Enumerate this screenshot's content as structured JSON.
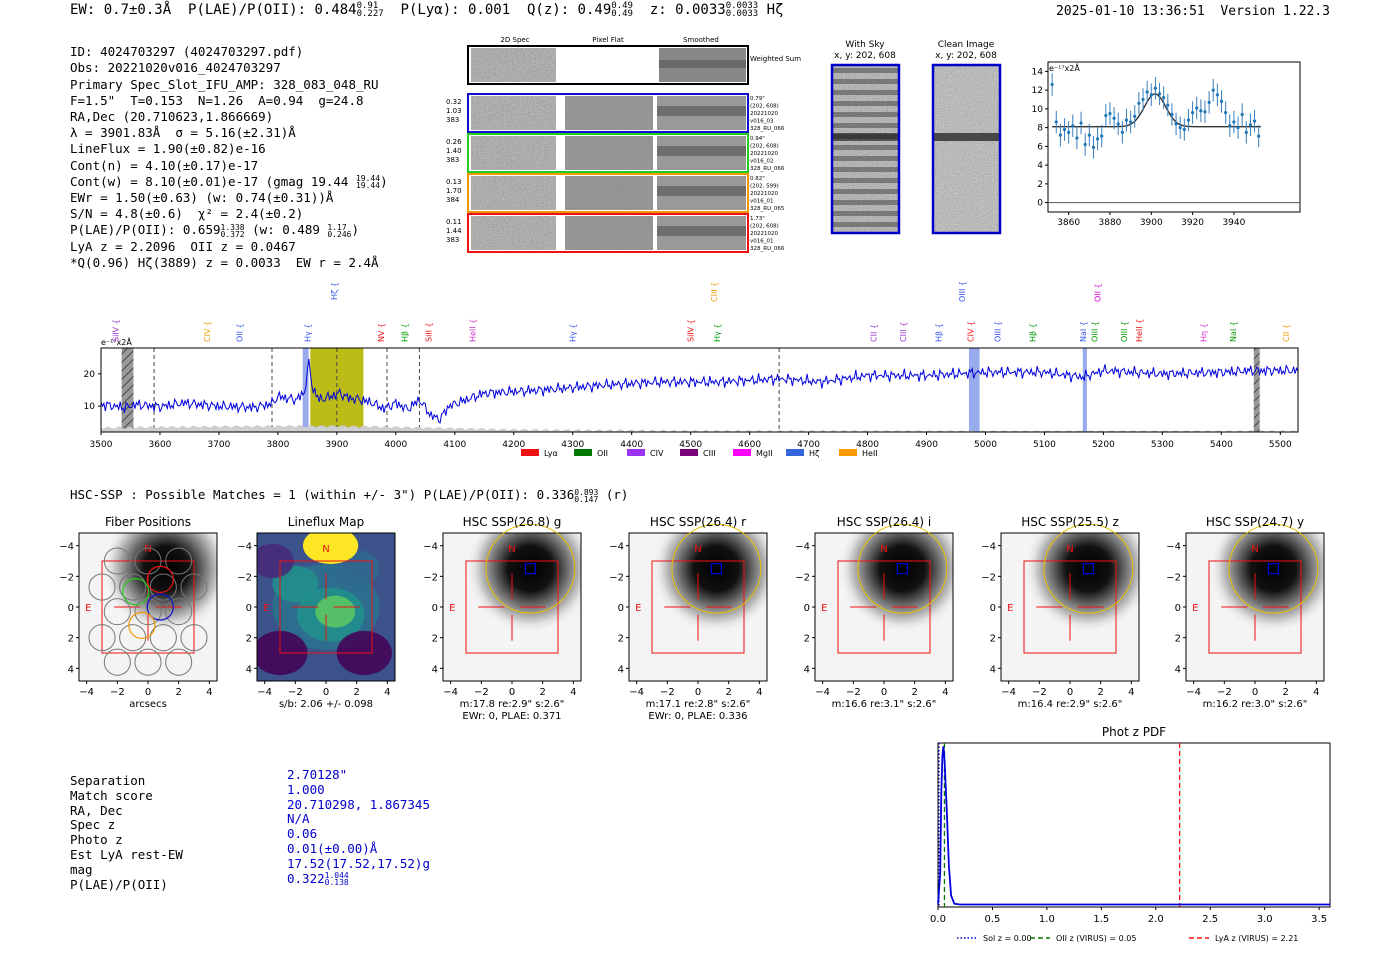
{
  "header": {
    "ew": "EW: 0.7±0.3Å",
    "plae": "P(LAE)/P(OII): 0.484",
    "plae_hi": "0.91",
    "plae_lo": "0.227",
    "plya": "P(Lyα): 0.001",
    "q": "Q(z): 0.49",
    "q_hi": "0.49",
    "q_lo": "0.49",
    "z": "z: 0.0033",
    "z_hi": "0.0033",
    "z_lo": "0.0033",
    "line": "Hζ",
    "timestamp": "2025-01-10 13:36:51",
    "version": "Version 1.22.3"
  },
  "info": [
    "ID: 4024703297 (4024703297.pdf)",
    "Obs: 20221020v016_4024703297",
    "Primary Spec_Slot_IFU_AMP: 328_083_048_RU",
    "F=1.5\"  T=0.153  N=1.26  A=0.94  g=24.8",
    "RA,Dec (20.710623,1.866669)",
    "λ = 3901.83Å  σ = 5.16(±2.31)Å",
    "LineFlux = 1.90(±0.82)e-16",
    "Cont(n) = 4.10(±0.17)e-17",
    "Cont(w) = 8.10(±0.01)e-17 (gmag 19.44",
    "EWr = 1.50(±0.63) (w: 0.74(±0.31))Å",
    "S/N = 4.8(±0.6)  χ² = 2.4(±0.2)",
    "P(LAE)/P(OII): 0.659",
    "LyA z = 2.2096  OII z = 0.0467",
    "*Q(0.96) Hζ(3889) z = 0.0033  EW r = 2.4Å"
  ],
  "info_sub": {
    "gmag_hi": "19.44",
    "gmag_lo": "19.44",
    "plae_hi": "1.338",
    "plae_lo": "0.372",
    "plae_w": "(w: 0.489",
    "plae_w_hi": "1.17",
    "plae_w_lo": "0.246"
  },
  "spec2d": {
    "col_headers": [
      "2D Spec",
      "Pixel Flat",
      "Smoothed"
    ],
    "weighted_label": "Weighted Sum",
    "rows": [
      {
        "color": "#1010cc",
        "left": [
          "0.32",
          "1.03",
          "383"
        ],
        "right": [
          "0.79\"",
          "(202, 608)",
          "20221020",
          "v016_03",
          "328_RU_066"
        ]
      },
      {
        "color": "#22cc22",
        "left": [
          "0.26",
          "1.40",
          "383"
        ],
        "right": [
          "0.94\"",
          "(202, 608)",
          "20221020",
          "v016_02",
          "328_RU_066"
        ]
      },
      {
        "color": "#ee9900",
        "left": [
          "0.13",
          "1.70",
          "384"
        ],
        "right": [
          "0.82\"",
          "(202, 599)",
          "20221020",
          "v016_01",
          "328_RU_065"
        ]
      },
      {
        "color": "#ee1111",
        "left": [
          "0.11",
          "1.44",
          "383"
        ],
        "right": [
          "1.73\"",
          "(202, 608)",
          "20221020",
          "v016_01",
          "328_RU_066"
        ]
      }
    ]
  },
  "cutouts": {
    "with_sky": {
      "title": "With Sky",
      "sub": "x, y: 202, 608"
    },
    "clean": {
      "title": "Clean Image",
      "sub": "x, y: 202, 608"
    }
  },
  "chart_data": [
    {
      "type": "scatter",
      "name": "line-fit",
      "ylabel": "e⁻¹⁷x2Å",
      "xlim": [
        3850,
        3972
      ],
      "ylim": [
        -1,
        15
      ],
      "xticks": [
        3860,
        3880,
        3900,
        3920,
        3940
      ],
      "yticks": [
        0,
        2,
        4,
        6,
        8,
        10,
        12,
        14
      ],
      "points": [
        [
          3852,
          12.6
        ],
        [
          3854,
          8.6
        ],
        [
          3856,
          7.2
        ],
        [
          3858,
          7.8
        ],
        [
          3860,
          7.5
        ],
        [
          3862,
          8.2
        ],
        [
          3864,
          6.9
        ],
        [
          3866,
          8.5
        ],
        [
          3868,
          6.2
        ],
        [
          3870,
          7.2
        ],
        [
          3872,
          5.9
        ],
        [
          3874,
          6.8
        ],
        [
          3876,
          7.1
        ],
        [
          3878,
          9.3
        ],
        [
          3880,
          9.5
        ],
        [
          3882,
          9.0
        ],
        [
          3884,
          8.4
        ],
        [
          3886,
          7.5
        ],
        [
          3888,
          8.8
        ],
        [
          3890,
          8.6
        ],
        [
          3892,
          9.2
        ],
        [
          3894,
          10.6
        ],
        [
          3896,
          11.0
        ],
        [
          3898,
          11.8
        ],
        [
          3900,
          11.5
        ],
        [
          3902,
          12.2
        ],
        [
          3904,
          11.6
        ],
        [
          3906,
          11.2
        ],
        [
          3908,
          10.4
        ],
        [
          3910,
          9.4
        ],
        [
          3912,
          8.4
        ],
        [
          3914,
          8.0
        ],
        [
          3916,
          7.8
        ],
        [
          3918,
          8.8
        ],
        [
          3920,
          9.6
        ],
        [
          3922,
          10.1
        ],
        [
          3924,
          9.8
        ],
        [
          3926,
          9.7
        ],
        [
          3928,
          10.7
        ],
        [
          3930,
          12.0
        ],
        [
          3932,
          11.5
        ],
        [
          3934,
          10.8
        ],
        [
          3936,
          9.6
        ],
        [
          3938,
          8.2
        ],
        [
          3940,
          8.6
        ],
        [
          3942,
          8.0
        ],
        [
          3944,
          9.4
        ],
        [
          3946,
          7.5
        ],
        [
          3948,
          8.3
        ],
        [
          3950,
          8.7
        ],
        [
          3952,
          7.1
        ]
      ],
      "fit": {
        "continuum": 8.1,
        "amplitude": 3.5,
        "center": 3901.83,
        "sigma": 5.16
      }
    },
    {
      "type": "line",
      "name": "full-spectrum",
      "ylabel": "e⁻¹⁷x2Å",
      "xlim": [
        3500,
        5530
      ],
      "ylim": [
        2,
        28
      ],
      "xticks": [
        3500,
        3600,
        3700,
        3800,
        3900,
        4000,
        4100,
        4200,
        4300,
        4400,
        4500,
        4600,
        4700,
        4800,
        4900,
        5000,
        5100,
        5200,
        5300,
        5400,
        5500
      ],
      "yticks": [
        10,
        20
      ],
      "anchors": [
        [
          3500,
          10.5
        ],
        [
          3540,
          9.6
        ],
        [
          3560,
          10.5
        ],
        [
          3600,
          9.8
        ],
        [
          3640,
          11.0
        ],
        [
          3700,
          10.0
        ],
        [
          3760,
          9.6
        ],
        [
          3790,
          10.8
        ],
        [
          3800,
          13.0
        ],
        [
          3830,
          12.0
        ],
        [
          3845,
          14.0
        ],
        [
          3852,
          24.0
        ],
        [
          3858,
          16.0
        ],
        [
          3870,
          12.0
        ],
        [
          3890,
          13.0
        ],
        [
          3905,
          14.0
        ],
        [
          3920,
          12.5
        ],
        [
          3940,
          12.0
        ],
        [
          3960,
          11.0
        ],
        [
          3980,
          9.2
        ],
        [
          4000,
          11.0
        ],
        [
          4020,
          9.0
        ],
        [
          4040,
          12.0
        ],
        [
          4060,
          7.0
        ],
        [
          4075,
          6.0
        ],
        [
          4090,
          10.0
        ],
        [
          4150,
          14.0
        ],
        [
          4250,
          15.0
        ],
        [
          4350,
          16.5
        ],
        [
          4450,
          17.5
        ],
        [
          4550,
          17.5
        ],
        [
          4650,
          18.5
        ],
        [
          4720,
          17.5
        ],
        [
          4800,
          19.5
        ],
        [
          4900,
          19.5
        ],
        [
          5000,
          20.5
        ],
        [
          5100,
          20.5
        ],
        [
          5165,
          19.0
        ],
        [
          5200,
          21.0
        ],
        [
          5300,
          20.0
        ],
        [
          5400,
          20.5
        ],
        [
          5450,
          21.0
        ],
        [
          5530,
          21.0
        ]
      ],
      "sky_anchors": [
        [
          3500,
          3.2
        ],
        [
          3700,
          3.6
        ],
        [
          3900,
          3.8
        ],
        [
          4000,
          3.4
        ],
        [
          4200,
          2.6
        ],
        [
          4500,
          2.2
        ],
        [
          5000,
          2.1
        ],
        [
          5530,
          2.1
        ]
      ],
      "dashed_lines": [
        3590,
        3790,
        3900,
        3985,
        4040,
        4650
      ],
      "hatched": [
        [
          3535,
          3555
        ],
        [
          5455,
          5465
        ]
      ],
      "highlights": [
        [
          3842,
          3852,
          "#4466dd"
        ],
        [
          3855,
          3945,
          "#b5b500"
        ],
        [
          4972,
          4990,
          "#4466dd"
        ],
        [
          5165,
          5172,
          "#4466dd"
        ]
      ],
      "line_labels": [
        {
          "text": "SiIV",
          "x": 3525,
          "color": "#9933cc",
          "row": 0
        },
        {
          "text": "CIV",
          "x": 3680,
          "color": "#ee9900",
          "row": 0
        },
        {
          "text": "OII",
          "x": 3735,
          "color": "#3355ee",
          "row": 0
        },
        {
          "text": "Hγ",
          "x": 3850,
          "color": "#3355ee",
          "row": 0
        },
        {
          "text": "Hζ",
          "x": 3895,
          "color": "#3355ee",
          "row": 2
        },
        {
          "text": "NV",
          "x": 3975,
          "color": "#ee1111",
          "row": 0
        },
        {
          "text": "Hβ",
          "x": 4015,
          "color": "#009900",
          "row": 0
        },
        {
          "text": "SiII",
          "x": 4055,
          "color": "#ee1111",
          "row": 0
        },
        {
          "text": "HeII",
          "x": 4130,
          "color": "#cc33cc",
          "row": 0
        },
        {
          "text": "Hγ",
          "x": 4300,
          "color": "#3355ee",
          "row": 0
        },
        {
          "text": "SiIV",
          "x": 4500,
          "color": "#ee1111",
          "row": 0
        },
        {
          "text": "CIII",
          "x": 4540,
          "color": "#ee9900",
          "row": 1
        },
        {
          "text": "Hγ",
          "x": 4545,
          "color": "#009900",
          "row": 0
        },
        {
          "text": "CII",
          "x": 4810,
          "color": "#9933cc",
          "row": 0
        },
        {
          "text": "CIII",
          "x": 4860,
          "color": "#9933cc",
          "row": 0
        },
        {
          "text": "Hβ",
          "x": 4920,
          "color": "#3355ee",
          "row": 0
        },
        {
          "text": "OIII",
          "x": 4960,
          "color": "#3355ee",
          "row": 1
        },
        {
          "text": "CIV",
          "x": 4975,
          "color": "#ee1111",
          "row": 0
        },
        {
          "text": "OIII",
          "x": 5020,
          "color": "#3355ee",
          "row": 0
        },
        {
          "text": "Hβ",
          "x": 5080,
          "color": "#009900",
          "row": 0
        },
        {
          "text": "NaI",
          "x": 5165,
          "color": "#3355ee",
          "row": 0
        },
        {
          "text": "OIII",
          "x": 5185,
          "color": "#009900",
          "row": 0
        },
        {
          "text": "OII",
          "x": 5190,
          "color": "#cc00cc",
          "row": 1
        },
        {
          "text": "OIII",
          "x": 5235,
          "color": "#009900",
          "row": 0
        },
        {
          "text": "HeII",
          "x": 5260,
          "color": "#ee1111",
          "row": 0
        },
        {
          "text": "Hη",
          "x": 5370,
          "color": "#cc33cc",
          "row": 0
        },
        {
          "text": "NaI",
          "x": 5420,
          "color": "#009900",
          "row": 0
        },
        {
          "text": "CII",
          "x": 5510,
          "color": "#ee9900",
          "row": 0
        }
      ],
      "legend": [
        {
          "name": "Lyα",
          "color": "#ee1111"
        },
        {
          "name": "OII",
          "color": "#007700"
        },
        {
          "name": "CIV",
          "color": "#9933ee"
        },
        {
          "name": "CIII",
          "color": "#770077"
        },
        {
          "name": "MgII",
          "color": "#ff00ff"
        },
        {
          "name": "Hζ",
          "color": "#3366dd"
        },
        {
          "name": "HeII",
          "color": "#ff9900"
        }
      ]
    },
    {
      "type": "line",
      "name": "photz-pdf",
      "title": "Phot z PDF",
      "xlim": [
        0,
        3.6
      ],
      "ylim": [
        0,
        1.0
      ],
      "xticks": [
        0.0,
        0.5,
        1.0,
        1.5,
        2.0,
        2.5,
        3.0,
        3.5
      ],
      "curve": [
        [
          0,
          0.02
        ],
        [
          0.02,
          0.2
        ],
        [
          0.03,
          0.7
        ],
        [
          0.04,
          0.92
        ],
        [
          0.05,
          0.98
        ],
        [
          0.06,
          0.9
        ],
        [
          0.08,
          0.6
        ],
        [
          0.1,
          0.25
        ],
        [
          0.12,
          0.07
        ],
        [
          0.15,
          0.02
        ],
        [
          0.2,
          0.015
        ],
        [
          3.6,
          0.015
        ]
      ],
      "vlines": [
        {
          "x": 0.0,
          "color": "#0000cc",
          "style": "dotted"
        },
        {
          "x": 0.05,
          "color": "#007700",
          "style": "dashed"
        },
        {
          "x": 2.21,
          "color": "#ee1111",
          "style": "dashed"
        }
      ],
      "legend": [
        {
          "name": "Sol z = 0.00",
          "color": "#0000cc",
          "style": "dotted"
        },
        {
          "name": "OII z (VIRUS) = 0.05",
          "color": "#007700",
          "style": "dashed"
        },
        {
          "name": "LyA z (VIRUS) = 2.21",
          "color": "#ee1111",
          "style": "dashed"
        }
      ]
    }
  ],
  "hsc": {
    "line": "HSC-SSP : Possible Matches = 1 (within +/- 3\")  P(LAE)/P(OII): 0.336",
    "hi": "0.893",
    "lo": "0.147",
    "band": "(r)",
    "panels": [
      {
        "title": "Fiber Positions",
        "caption": "arcsecs",
        "caption2": ""
      },
      {
        "title": "Lineflux Map",
        "caption": "s/b: 2.06 +/- 0.098",
        "caption2": ""
      },
      {
        "title": "HSC SSP(26.8) g",
        "caption": "m:17.8  re:2.9\"  s:2.6\"",
        "caption2": "EWr: 0, PLAE: 0.371"
      },
      {
        "title": "HSC SSP(26.4) r",
        "caption": "m:17.1  re:2.8\"  s:2.6\"",
        "caption2": "EWr: 0, PLAE: 0.336"
      },
      {
        "title": "HSC SSP(26.4) i",
        "caption": "m:16.6  re:3.1\"  s:2.6\"",
        "caption2": ""
      },
      {
        "title": "HSC SSP(25.5) z",
        "caption": "m:16.4  re:2.9\"  s:2.6\"",
        "caption2": ""
      },
      {
        "title": "HSC SSP(24.7) y",
        "caption": "m:16.2  re:3.0\"  s:2.6\"",
        "caption2": ""
      }
    ],
    "ticks": [
      "−4",
      "−2",
      "0",
      "2",
      "4"
    ],
    "compass_n": "N",
    "compass_e": "E"
  },
  "match": {
    "labels": [
      "Separation",
      "Match score",
      "RA, Dec",
      "Spec z",
      "Photo z",
      "Est LyA rest-EW",
      "mag",
      "P(LAE)/P(OII)"
    ],
    "values": [
      "2.70128\"",
      "1.000",
      "20.710298, 1.867345",
      "N/A",
      "0.06",
      "0.01(±0.00)Å",
      "17.52(17.52,17.52)g",
      "0.322"
    ],
    "plae_hi": "1.044",
    "plae_lo": "0.138"
  }
}
